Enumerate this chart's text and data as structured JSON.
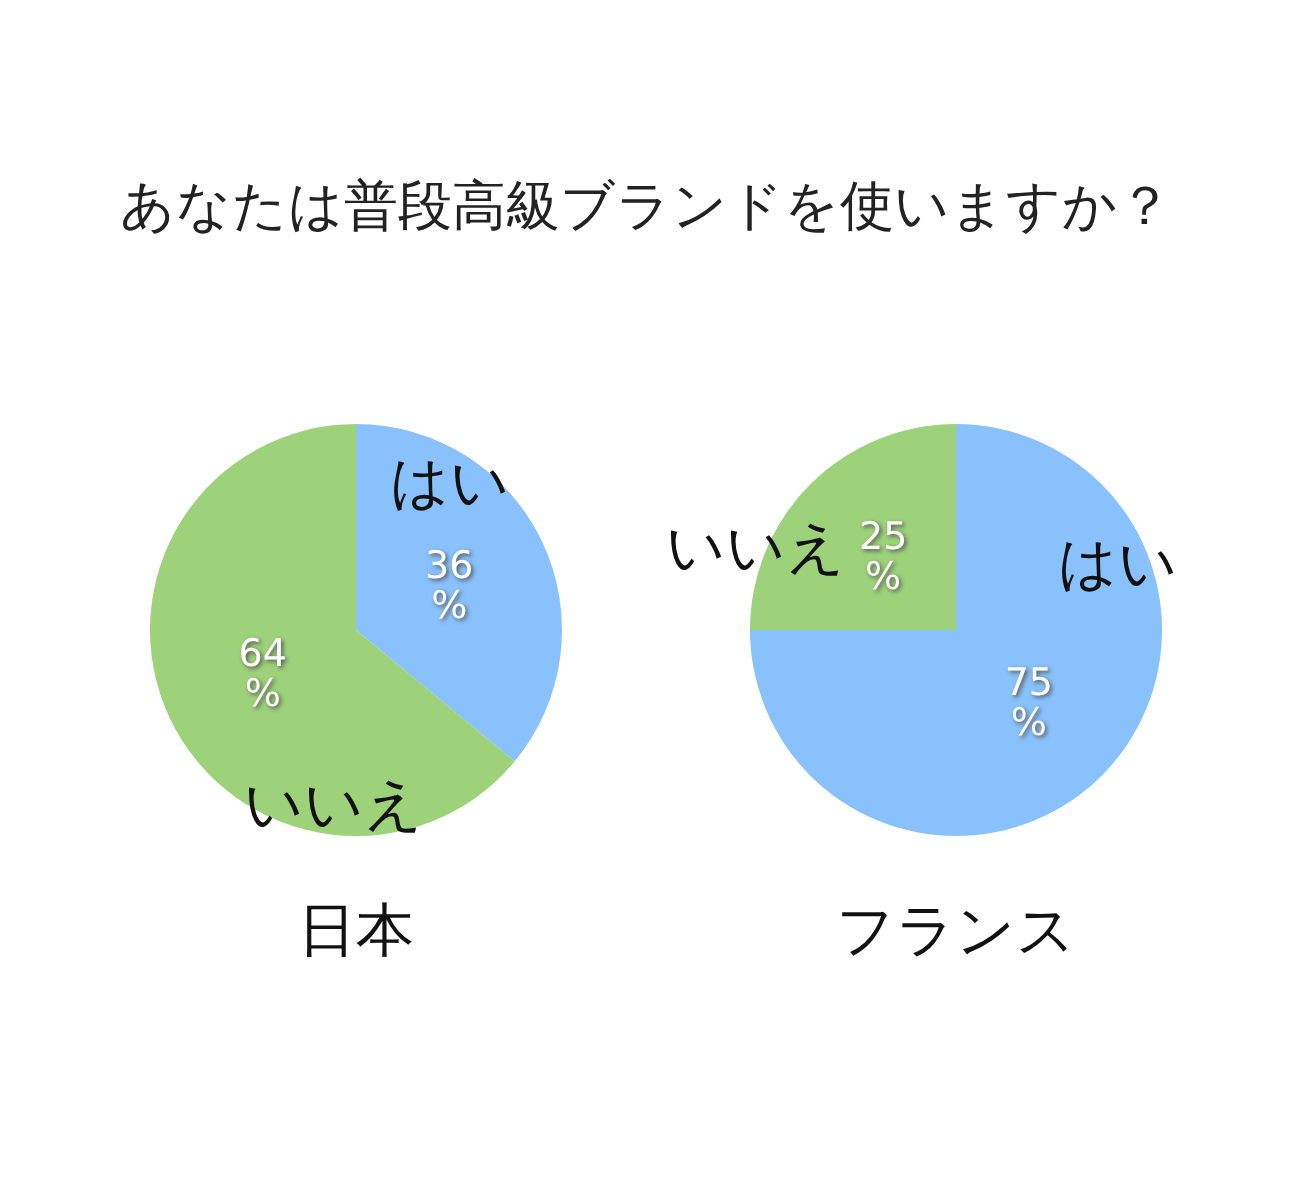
{
  "chart_data": [
    {
      "type": "pie",
      "title": "あなたは普段高級ブランドを使いますか？",
      "xlabel": "日本",
      "categories": [
        "はい",
        "いいえ"
      ],
      "values": [
        36,
        64
      ],
      "value_labels": [
        "36%",
        "64%"
      ],
      "colors": [
        "#88c1fb",
        "#9dd17a"
      ]
    },
    {
      "type": "pie",
      "xlabel": "フランス",
      "categories": [
        "はい",
        "いいえ"
      ],
      "values": [
        75,
        25
      ],
      "value_labels": [
        "75%",
        "25%"
      ],
      "colors": [
        "#88c1fb",
        "#9dd17a"
      ]
    }
  ]
}
